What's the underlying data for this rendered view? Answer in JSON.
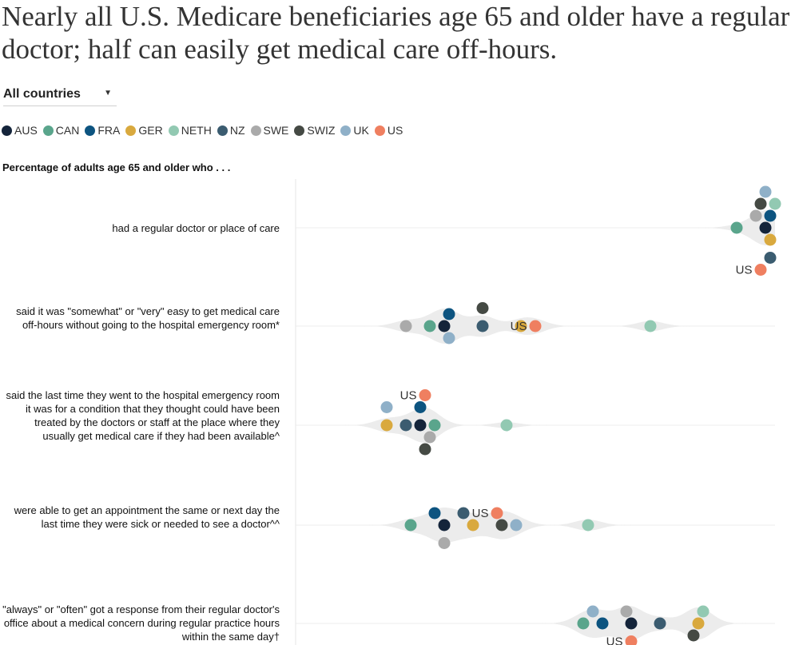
{
  "title": "Nearly all U.S. Medicare beneficiaries age 65 and older have a regular doctor; half can easily get medical care off-hours.",
  "filter": {
    "selected": "All countries",
    "caret_icon": "caret-down-icon"
  },
  "legend": [
    {
      "code": "AUS",
      "color": "#14243a"
    },
    {
      "code": "CAN",
      "color": "#5aa58c"
    },
    {
      "code": "FRA",
      "color": "#0d5480"
    },
    {
      "code": "GER",
      "color": "#d9a93e"
    },
    {
      "code": "NETH",
      "color": "#92c9b2"
    },
    {
      "code": "NZ",
      "color": "#3b5c70"
    },
    {
      "code": "SWE",
      "color": "#aaaaaa"
    },
    {
      "code": "SWIZ",
      "color": "#454a44"
    },
    {
      "code": "UK",
      "color": "#8fb0c8"
    },
    {
      "code": "US",
      "color": "#ef7f60"
    }
  ],
  "chart_data": {
    "type": "scatter",
    "title": "Percentage of adults age 65 and older who . . .",
    "xlim": [
      0,
      100
    ],
    "grid": false,
    "highlight_label": "US",
    "categories": [
      "had a regular doctor or place of care",
      "said it was \"somewhat\" or \"very\" easy to get medical care off-hours without going to the hospital emergency room*",
      "said the last time they went to the hospital emergency room it was for a condition that they thought could have been treated by the doctors or staff at the place where they usually get medical care if they had been available^",
      "were able to get an appointment the same or next day the last time they were sick or needed to see a doctor^^",
      "\"always\" or \"often\" got a response from their regular doctor's office about a medical concern during regular practice hours within the same day†"
    ],
    "series": [
      {
        "name": "AUS",
        "values": [
          98,
          31,
          26,
          31,
          70
        ]
      },
      {
        "name": "CAN",
        "values": [
          92,
          28,
          29,
          24,
          60
        ]
      },
      {
        "name": "FRA",
        "values": [
          99,
          32,
          26,
          29,
          64
        ]
      },
      {
        "name": "GER",
        "values": [
          99,
          47,
          19,
          37,
          84
        ]
      },
      {
        "name": "NETH",
        "values": [
          100,
          74,
          44,
          61,
          85
        ]
      },
      {
        "name": "NZ",
        "values": [
          99,
          39,
          23,
          35,
          76
        ]
      },
      {
        "name": "SWE",
        "values": [
          96,
          23,
          28,
          31,
          69
        ]
      },
      {
        "name": "SWIZ",
        "values": [
          97,
          39,
          27,
          43,
          83
        ]
      },
      {
        "name": "UK",
        "values": [
          98,
          32,
          19,
          46,
          62
        ]
      },
      {
        "name": "US",
        "values": [
          97,
          50,
          27,
          42,
          70
        ]
      }
    ]
  }
}
